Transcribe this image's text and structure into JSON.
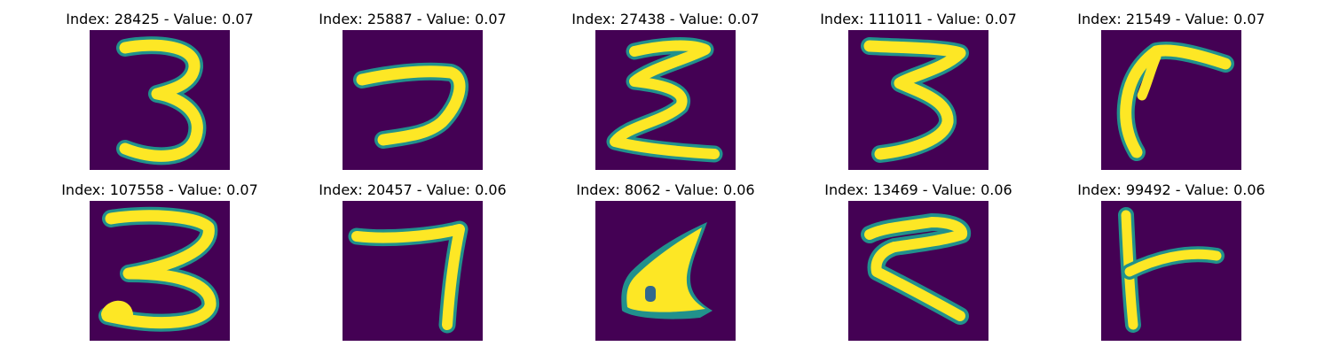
{
  "colors": {
    "background": "#440154",
    "low": "#31688e",
    "mid": "#21918c",
    "high": "#fde725"
  },
  "panels": [
    {
      "title": "Index: 28425 - Value: 0.07",
      "depicts": "digit 3"
    },
    {
      "title": "Index: 25887 - Value: 0.07",
      "depicts": "digit 7"
    },
    {
      "title": "Index: 27438 - Value: 0.07",
      "depicts": "zigzag stroke"
    },
    {
      "title": "Index: 111011 - Value: 0.07",
      "depicts": "digit 3"
    },
    {
      "title": "Index: 21549 - Value: 0.07",
      "depicts": "hook stroke"
    },
    {
      "title": "Index: 107558 - Value: 0.07",
      "depicts": "digit 3"
    },
    {
      "title": "Index: 20457 - Value: 0.06",
      "depicts": "digit 7"
    },
    {
      "title": "Index: 8062 - Value: 0.06",
      "depicts": "filled stroke"
    },
    {
      "title": "Index: 13469 - Value: 0.06",
      "depicts": "k-like stroke"
    },
    {
      "title": "Index: 99492 - Value: 0.06",
      "depicts": "t-like stroke"
    }
  ]
}
